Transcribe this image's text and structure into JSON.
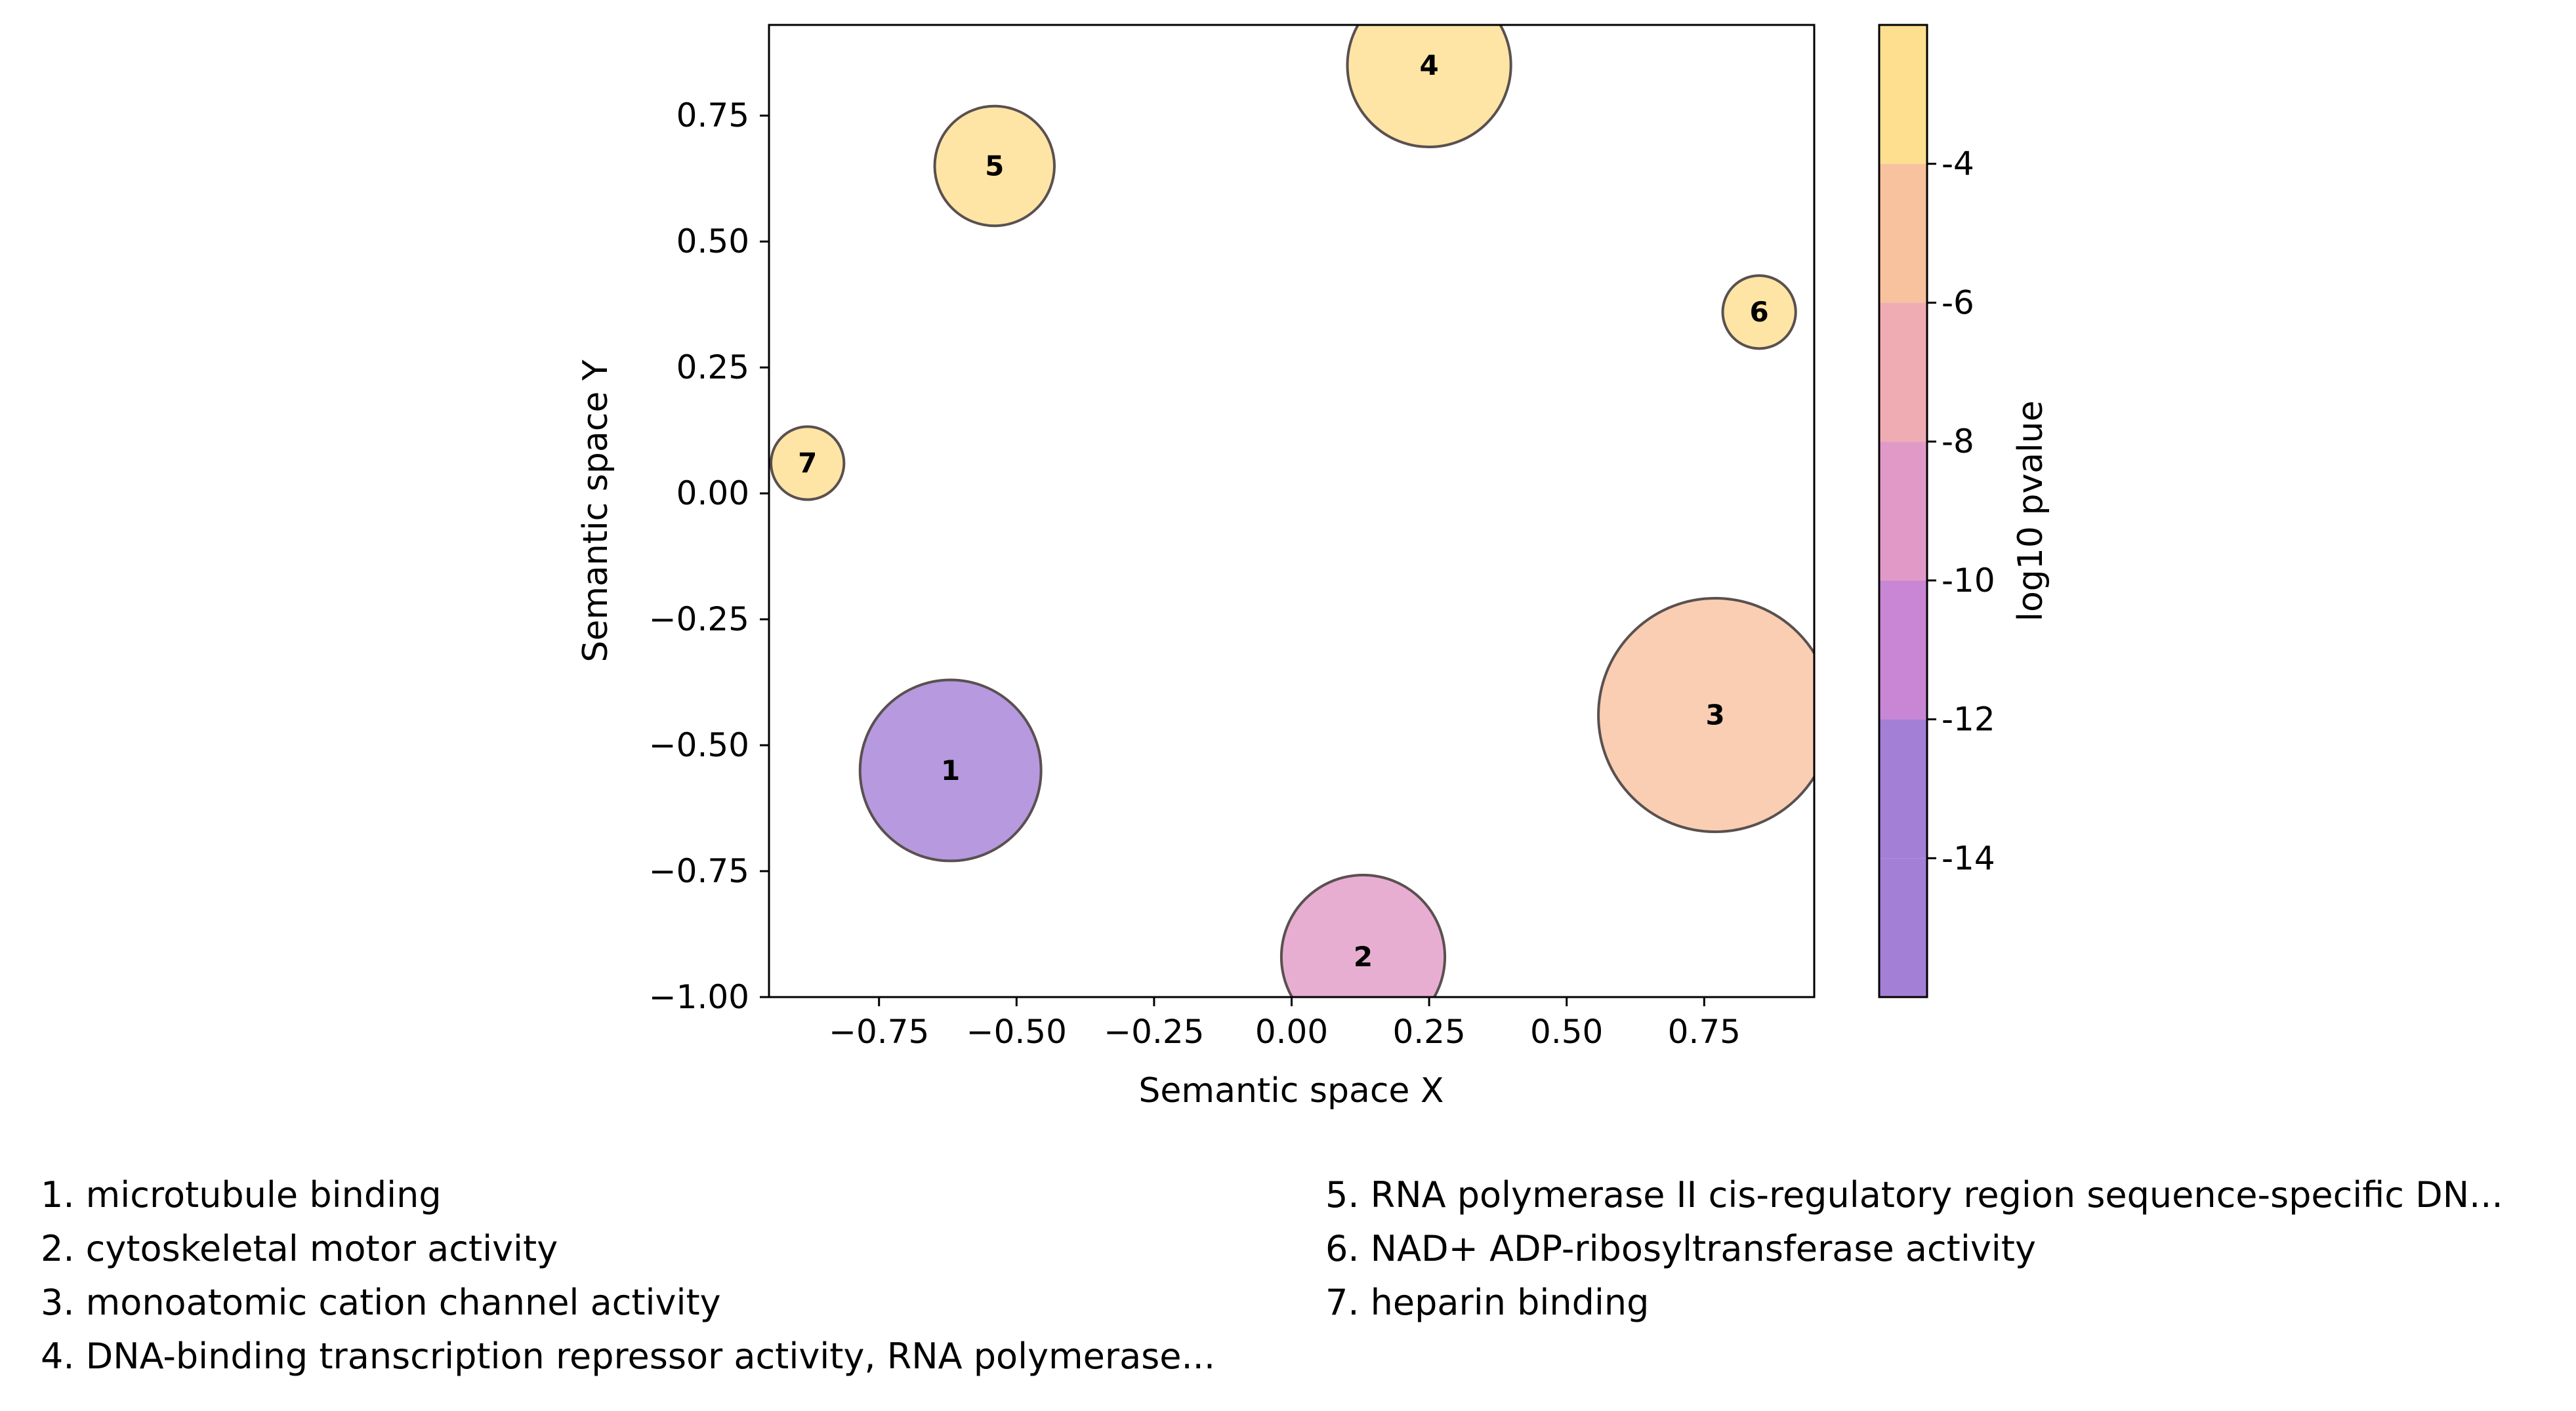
{
  "chart_data": {
    "type": "scatter",
    "xlabel": "Semantic space X",
    "ylabel": "Semantic space Y",
    "xlim": [
      -0.95,
      0.95
    ],
    "ylim": [
      -1.0,
      0.93
    ],
    "xticks": [
      -0.75,
      -0.5,
      -0.25,
      0.0,
      0.25,
      0.5,
      0.75
    ],
    "xtick_labels": [
      "−0.75",
      "−0.50",
      "−0.25",
      "0.00",
      "0.25",
      "0.50",
      "0.75"
    ],
    "yticks": [
      -1.0,
      -0.75,
      -0.5,
      -0.25,
      0.0,
      0.25,
      0.5,
      0.75
    ],
    "ytick_labels": [
      "−1.00",
      "−0.75",
      "−0.50",
      "−0.25",
      "0.00",
      "0.25",
      "0.50",
      "0.75"
    ],
    "grid": false,
    "colorbar": {
      "label": "log10 pvalue",
      "ticks": [
        -4,
        -6,
        -8,
        -10,
        -12,
        -14
      ],
      "tick_labels": [
        "-4",
        "-6",
        "-8",
        "-10",
        "-12",
        "-14"
      ],
      "range": [
        -16,
        -2
      ],
      "bands": [
        {
          "from": -4.0,
          "to": -2.0,
          "color": "#fedf8f"
        },
        {
          "from": -6.0,
          "to": -4.0,
          "color": "#f8c29f"
        },
        {
          "from": -8.0,
          "to": -6.0,
          "color": "#efadb3"
        },
        {
          "from": -10.0,
          "to": -8.0,
          "color": "#e19ac7"
        },
        {
          "from": -12.0,
          "to": -10.0,
          "color": "#c886d4"
        },
        {
          "from": -14.0,
          "to": -12.0,
          "color": "#a47fd6"
        }
      ]
    },
    "points": [
      {
        "id": "1",
        "x": -0.62,
        "y": -0.55,
        "size": 0.62,
        "color": "#a47fd6"
      },
      {
        "id": "2",
        "x": 0.13,
        "y": -0.92,
        "size": 0.56,
        "color": "#e19ac7"
      },
      {
        "id": "3",
        "x": 0.77,
        "y": -0.44,
        "size": 0.8,
        "color": "#f8c29f"
      },
      {
        "id": "4",
        "x": 0.25,
        "y": 0.85,
        "size": 0.56,
        "color": "#fedf8f"
      },
      {
        "id": "5",
        "x": -0.54,
        "y": 0.65,
        "size": 0.41,
        "color": "#fedf8f"
      },
      {
        "id": "6",
        "x": 0.85,
        "y": 0.36,
        "size": 0.25,
        "color": "#fedf8f"
      },
      {
        "id": "7",
        "x": -0.88,
        "y": 0.06,
        "size": 0.25,
        "color": "#fedf8f"
      }
    ]
  },
  "legend": {
    "left": [
      "1. microtubule binding",
      "2. cytoskeletal motor activity",
      "3. monoatomic cation channel activity",
      "4. DNA-binding transcription repressor activity, RNA polymerase..."
    ],
    "right": [
      "5. RNA polymerase II cis-regulatory region sequence-specific DN...",
      "6. NAD+ ADP-ribosyltransferase activity",
      "7. heparin binding"
    ]
  }
}
